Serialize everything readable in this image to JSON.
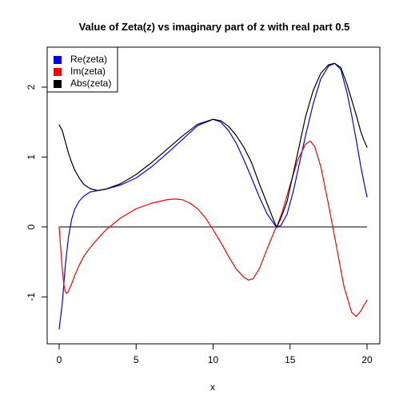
{
  "chart_data": {
    "type": "line",
    "title": "Value of Zeta(z) vs imaginary part of z with real part  0.5",
    "xlabel": "x",
    "ylabel": "",
    "xlim": [
      0,
      20
    ],
    "ylim": [
      -1.5,
      2.4
    ],
    "x_ticks": [
      0,
      5,
      10,
      15,
      20
    ],
    "x_tick_labels": [
      "0",
      "5",
      "10",
      "15",
      "20"
    ],
    "y_ticks": [
      -1,
      0,
      1,
      2
    ],
    "y_tick_labels": [
      "-1",
      "0",
      "1",
      "2"
    ],
    "grid": false,
    "legend_position": "top-left",
    "reference_line": {
      "y": 0,
      "color": "#000000"
    },
    "series": [
      {
        "name": "Re(zeta)",
        "color": "#0000ff",
        "x": [
          0,
          0.2,
          0.4,
          0.6,
          0.8,
          1.0,
          1.3,
          1.6,
          2.0,
          2.5,
          3.0,
          4.0,
          5.0,
          6.0,
          7.0,
          8.0,
          9.0,
          10.0,
          10.5,
          11.0,
          11.5,
          12.0,
          12.5,
          13.0,
          13.5,
          14.0,
          14.13,
          14.4,
          14.8,
          15.2,
          15.6,
          16.0,
          16.5,
          17.0,
          17.5,
          17.9,
          18.3,
          18.7,
          19.0,
          19.3,
          19.6,
          19.8,
          20.0
        ],
        "y": [
          -1.46,
          -1.1,
          -0.55,
          -0.15,
          0.1,
          0.25,
          0.37,
          0.44,
          0.5,
          0.52,
          0.54,
          0.6,
          0.7,
          0.86,
          1.05,
          1.25,
          1.45,
          1.54,
          1.5,
          1.38,
          1.2,
          0.96,
          0.7,
          0.43,
          0.19,
          0.03,
          0.0,
          0.02,
          0.18,
          0.5,
          0.9,
          1.3,
          1.76,
          2.12,
          2.3,
          2.34,
          2.25,
          1.92,
          1.6,
          1.24,
          0.86,
          0.64,
          0.43
        ]
      },
      {
        "name": "Im(zeta)",
        "color": "#ff0000",
        "x": [
          0,
          0.1,
          0.2,
          0.3,
          0.4,
          0.5,
          0.6,
          0.8,
          1.0,
          1.3,
          1.6,
          2.0,
          2.5,
          3.0,
          4.0,
          5.0,
          6.0,
          7.0,
          7.5,
          8.0,
          8.5,
          9.0,
          9.5,
          10.0,
          10.5,
          11.0,
          11.5,
          12.0,
          12.3,
          12.6,
          13.0,
          13.5,
          14.0,
          14.13,
          14.5,
          15.0,
          15.5,
          16.0,
          16.3,
          16.6,
          17.0,
          17.5,
          18.0,
          18.5,
          19.0,
          19.3,
          19.6,
          19.8,
          20.0
        ],
        "y": [
          0.0,
          -0.3,
          -0.6,
          -0.82,
          -0.93,
          -0.95,
          -0.92,
          -0.82,
          -0.7,
          -0.55,
          -0.42,
          -0.3,
          -0.17,
          -0.05,
          0.13,
          0.26,
          0.34,
          0.39,
          0.4,
          0.39,
          0.34,
          0.26,
          0.13,
          -0.04,
          -0.22,
          -0.42,
          -0.6,
          -0.72,
          -0.76,
          -0.74,
          -0.6,
          -0.32,
          -0.05,
          0.0,
          0.22,
          0.6,
          0.96,
          1.18,
          1.23,
          1.15,
          0.86,
          0.32,
          -0.26,
          -0.85,
          -1.22,
          -1.28,
          -1.2,
          -1.12,
          -1.05
        ]
      },
      {
        "name": "Abs(zeta)",
        "color": "#000000",
        "x": [
          0,
          0.2,
          0.4,
          0.6,
          0.8,
          1.0,
          1.3,
          1.6,
          2.0,
          2.5,
          3.0,
          4.0,
          5.0,
          6.0,
          7.0,
          8.0,
          9.0,
          10.0,
          10.5,
          11.0,
          11.5,
          12.0,
          12.5,
          13.0,
          13.5,
          14.0,
          14.13,
          14.4,
          14.8,
          15.2,
          15.6,
          16.0,
          16.5,
          17.0,
          17.5,
          17.9,
          18.3,
          18.7,
          19.0,
          19.3,
          19.6,
          19.8,
          20.0
        ],
        "y": [
          1.46,
          1.38,
          1.22,
          1.06,
          0.93,
          0.82,
          0.7,
          0.61,
          0.55,
          0.52,
          0.54,
          0.62,
          0.75,
          0.92,
          1.11,
          1.3,
          1.47,
          1.54,
          1.52,
          1.44,
          1.31,
          1.14,
          0.92,
          0.62,
          0.34,
          0.06,
          0.0,
          0.12,
          0.36,
          0.76,
          1.16,
          1.57,
          1.95,
          2.2,
          2.32,
          2.34,
          2.28,
          2.04,
          1.82,
          1.6,
          1.36,
          1.24,
          1.14
        ]
      }
    ]
  }
}
